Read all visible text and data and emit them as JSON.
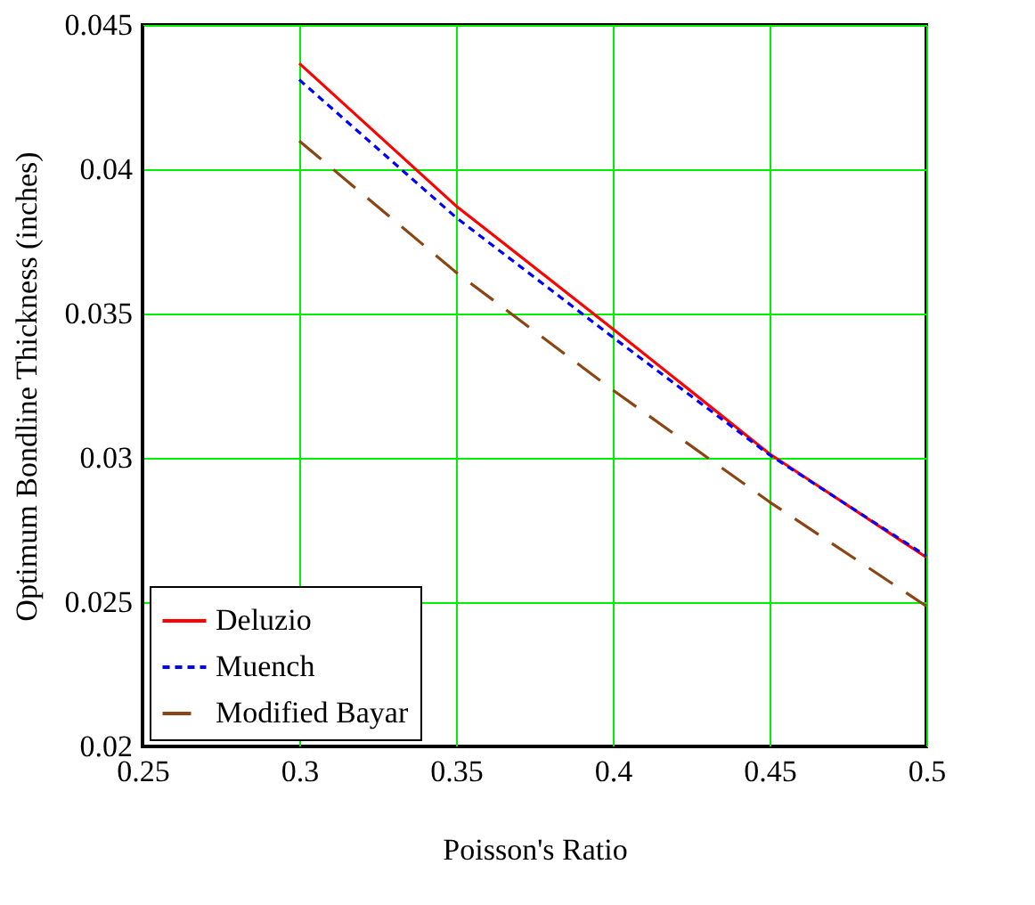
{
  "chart_data": {
    "type": "line",
    "xlabel": "Poisson's Ratio",
    "ylabel": "Optimum Bondline Thickness (inches)",
    "x": [
      0.3,
      0.35,
      0.4,
      0.45,
      0.5
    ],
    "series": [
      {
        "name": "Deluzio",
        "color": "#ff0000",
        "line_style": "solid",
        "values": [
          0.04367,
          0.03873,
          0.03447,
          0.03014,
          0.02655
        ]
      },
      {
        "name": "Muench",
        "color": "#0000ff",
        "line_style": "dotted",
        "values": [
          0.0431,
          0.03833,
          0.03418,
          0.0301,
          0.0266
        ]
      },
      {
        "name": "Modified Bayar",
        "color": "#8b4513",
        "line_style": "dashed",
        "values": [
          0.04098,
          0.03643,
          0.03235,
          0.02847,
          0.02486
        ]
      }
    ],
    "xlim": [
      0.25,
      0.5
    ],
    "xticks": [
      0.25,
      0.3,
      0.35,
      0.4,
      0.45,
      0.5
    ],
    "ylim": [
      0.02,
      0.045
    ],
    "yticks": [
      0.02,
      0.025,
      0.03,
      0.035,
      0.04,
      0.045
    ],
    "grid": true,
    "legend": "bottom left",
    "marker": "none"
  }
}
